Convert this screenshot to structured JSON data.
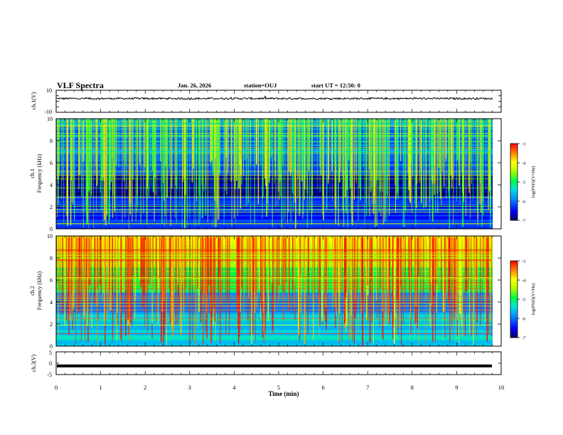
{
  "header": {
    "title": "VLF Spectra",
    "date": "Jan. 26, 2026",
    "station": "station=OUJ",
    "start_ut": "start UT =  12:50: 0"
  },
  "chart_data": [
    {
      "type": "line",
      "panel": "ch1-waveform",
      "ylabel": "ch.1(V)",
      "ylim": [
        -10,
        10
      ],
      "yticks": [
        "10",
        "-10"
      ],
      "description_value": "noisy trace centred near 2.5 V",
      "baseline": 2.5
    },
    {
      "type": "heatmap",
      "panel": "ch1-spectrogram",
      "ylabel_1": "ch.1",
      "ylabel_2": "Frequency (kHz)",
      "ylim": [
        0,
        10
      ],
      "yticks": [
        "0",
        "2",
        "4",
        "6",
        "8",
        "10"
      ],
      "colorbar": {
        "label": "log(PSD)(V²/Hz)",
        "range": [
          -7,
          -3
        ],
        "ticks": [
          "-3",
          "-4",
          "-5",
          "-6",
          "-7"
        ]
      }
    },
    {
      "type": "heatmap",
      "panel": "ch2-spectrogram",
      "ylabel_1": "ch.2",
      "ylabel_2": "Frequency (kHz)",
      "ylim": [
        0,
        10
      ],
      "yticks": [
        "0",
        "2",
        "4",
        "6",
        "8",
        "10"
      ],
      "colorbar": {
        "label": "log(PSD)(V²/Hz)",
        "range": [
          -7,
          -3
        ],
        "ticks": [
          "-3",
          "-4",
          "-5",
          "-6",
          "-7"
        ]
      }
    },
    {
      "type": "line",
      "panel": "ch3-waveform",
      "ylabel": "ch.3(V)",
      "ylim": [
        -5,
        5
      ],
      "yticks": [
        "5",
        "0",
        "-5"
      ],
      "baseline": -1.2
    }
  ],
  "xaxis": {
    "label": "Time (min)",
    "range": [
      0,
      10
    ],
    "ticks": [
      "0",
      "1",
      "2",
      "3",
      "4",
      "5",
      "6",
      "7",
      "8",
      "9",
      "10"
    ]
  }
}
